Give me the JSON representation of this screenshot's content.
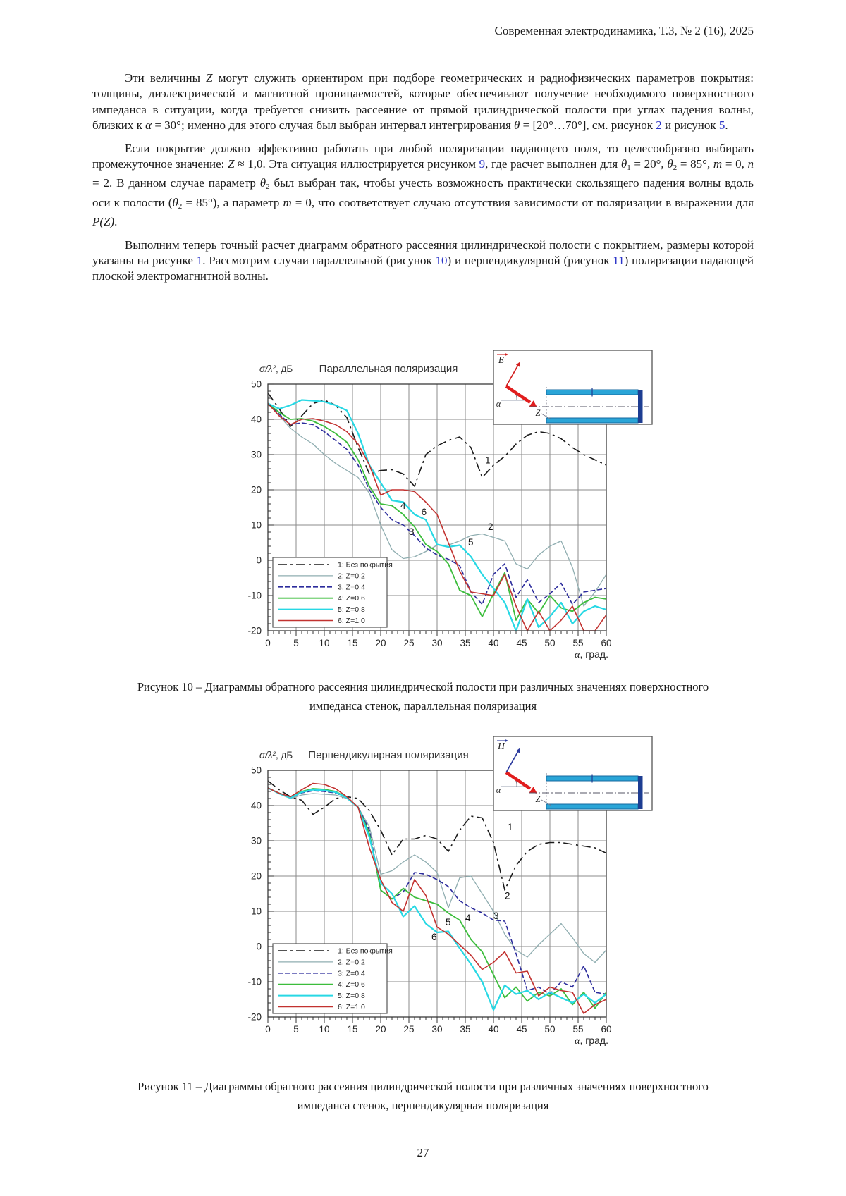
{
  "header": {
    "journal_line": "Современная электродинамика, Т.3, № 2 (16), 2025"
  },
  "page_number": "27",
  "paragraphs": [
    [
      {
        "t": "Эти величины "
      },
      {
        "t": "Z",
        "i": true
      },
      {
        "t": " могут служить ориентиром при подборе геометрических и радиофизических параметров покрытия: толщины, диэлектрической и магнитной проницаемостей, которые обеспечивают получение необходимого поверхностного импеданса в ситуации, когда требуется снизить рассеяние от прямой цилиндрической полости при углах падения волны, близких к "
      },
      {
        "t": "α",
        "i": true
      },
      {
        "t": " = 30°; именно для этого случая был выбран интервал интегрирования "
      },
      {
        "t": "θ",
        "i": true
      },
      {
        "t": " = [20°…70°], см. рисунок "
      },
      {
        "t": "2",
        "l": true
      },
      {
        "t": " и рисунок "
      },
      {
        "t": "5",
        "l": true
      },
      {
        "t": "."
      }
    ],
    [
      {
        "t": "Если покрытие должно эффективно работать при любой поляризации падающего поля, то целесообразно выбирать промежуточное значение: "
      },
      {
        "t": "Z",
        "i": true
      },
      {
        "t": " ≈ 1,0. Эта ситуация иллюстрируется рисунком "
      },
      {
        "t": "9",
        "l": true
      },
      {
        "t": ", где расчет выполнен для "
      },
      {
        "t": "θ",
        "i": true
      },
      {
        "t": "1",
        "sub": true
      },
      {
        "t": " = 20°, "
      },
      {
        "t": "θ",
        "i": true
      },
      {
        "t": "2",
        "sub": true
      },
      {
        "t": " = 85°, "
      },
      {
        "t": "m",
        "i": true
      },
      {
        "t": " = 0, "
      },
      {
        "t": "n",
        "i": true
      },
      {
        "t": " = 2. В данном случае параметр "
      },
      {
        "t": "θ",
        "i": true
      },
      {
        "t": "2",
        "sub": true
      },
      {
        "t": " был выбран так, чтобы учесть возможность практически скользящего падения волны вдоль оси к полости ("
      },
      {
        "t": "θ",
        "i": true
      },
      {
        "t": "2",
        "sub": true
      },
      {
        "t": " = 85°), а параметр "
      },
      {
        "t": "m",
        "i": true
      },
      {
        "t": " = 0, что соответствует случаю отсутствия зависимости от поляризации в выражении для "
      },
      {
        "t": "P(Z)",
        "i": true
      },
      {
        "t": "."
      }
    ],
    [
      {
        "t": "Выполним теперь точный расчет диаграмм обратного рассеяния цилиндрической полости с покрытием, размеры которой указаны на рисунке "
      },
      {
        "t": "1",
        "l": true
      },
      {
        "t": ". Рассмотрим случаи параллельной (рисунок "
      },
      {
        "t": "10",
        "l": true
      },
      {
        "t": ") и перпендикулярной (рисунок "
      },
      {
        "t": "11",
        "l": true
      },
      {
        "t": ") поляризации падающей плоской электромагнитной волны."
      }
    ]
  ],
  "captions": [
    {
      "line1": "Рисунок 10 – Диаграммы обратного рассеяния цилиндрической полости при различных значениях поверхностного",
      "line2": "импеданса стенок, параллельная поляризация"
    },
    {
      "line1": "Рисунок 11 – Диаграммы обратного рассеяния цилиндрической полости при различных значениях поверхностного",
      "line2": "импеданса стенок, перпендикулярная поляризация"
    }
  ],
  "chart_data": [
    {
      "type": "line",
      "title": "Параллельная поляризация",
      "ylabel": "σ/λ², дБ",
      "xlabel": "α, град.",
      "xlim": [
        0,
        60
      ],
      "ylim": [
        -20,
        50
      ],
      "x_tick_step": 5,
      "y_tick_step": 10,
      "x_minor": 1,
      "y_minor": 2,
      "x_step": 2,
      "grid": true,
      "legend_position": "bottom-left",
      "series": [
        {
          "name": "1: Без покрытия",
          "color": "#1a1a1a",
          "width": 1.6,
          "dash": "13 5 3 5",
          "values": [
            47.5,
            43,
            38,
            41,
            44.5,
            45.5,
            44,
            40.5,
            32,
            24.5,
            25.5,
            25.7,
            24.5,
            21,
            30,
            32.5,
            34,
            35,
            32,
            23.5,
            27,
            29.5,
            33,
            35.5,
            36.5,
            36,
            34.5,
            32,
            30,
            28.5,
            27
          ]
        },
        {
          "name": "2: Z=0.2",
          "color": "#8fadb0",
          "width": 1.3,
          "dash": "",
          "values": [
            44.5,
            41,
            37.5,
            35,
            33,
            30,
            27.5,
            25.5,
            23.5,
            19,
            10,
            3,
            0.5,
            1,
            2.5,
            4.3,
            4.3,
            5.5,
            7,
            7.5,
            6.5,
            5.5,
            -1,
            -2.5,
            1.5,
            4,
            5.5,
            -2,
            -13,
            -9,
            -4
          ]
        },
        {
          "name": "3: Z=0.4",
          "color": "#2c2c9c",
          "width": 1.6,
          "dash": "7 3",
          "values": [
            44.5,
            41.5,
            38.5,
            39,
            38.5,
            36.5,
            34,
            31.5,
            27,
            20,
            15,
            11.5,
            10,
            7,
            3.5,
            1.5,
            0.3,
            -1.5,
            -9,
            -12.5,
            -4,
            -1,
            -10.5,
            -5.5,
            -12,
            -9.5,
            -6.5,
            -12.5,
            -9,
            -8.5,
            -8
          ]
        },
        {
          "name": "4: Z=0.6",
          "color": "#3cbd3c",
          "width": 1.8,
          "dash": "",
          "values": [
            44.5,
            42,
            40,
            40.2,
            39.5,
            38,
            36,
            33.5,
            28.5,
            21,
            16,
            15.5,
            13,
            9.5,
            4.5,
            2.5,
            -1,
            -8.5,
            -10,
            -16,
            -9.5,
            -3.5,
            -17,
            -11,
            -15,
            -10,
            -13.5,
            -14.5,
            -12,
            -10.5,
            -11
          ]
        },
        {
          "name": "5: Z=0.8",
          "color": "#27d8e4",
          "width": 2.2,
          "dash": "",
          "values": [
            44.5,
            43,
            44,
            45.5,
            45.3,
            45,
            44,
            42.5,
            36,
            27,
            22,
            17,
            16.5,
            13,
            11.5,
            4.5,
            3.8,
            4.3,
            1,
            -4,
            -8,
            -12,
            -20,
            -11,
            -19,
            -16,
            -12,
            -18,
            -14.5,
            -13,
            -14
          ]
        },
        {
          "name": "6: Z=1.0",
          "color": "#c23230",
          "width": 1.6,
          "dash": "",
          "values": [
            44.5,
            41,
            38.5,
            40,
            40.2,
            39.5,
            38.5,
            36.5,
            33,
            27,
            18.5,
            20,
            20,
            19.5,
            16.5,
            13,
            5,
            -3,
            -9,
            -9.5,
            -10,
            -4,
            -13,
            -20,
            -14.5,
            -20,
            -17,
            -13,
            -20,
            -20,
            -15.5
          ]
        }
      ],
      "curve_labels": [
        {
          "t": "1",
          "x": 38.5,
          "y": 27.5
        },
        {
          "t": "2",
          "x": 39,
          "y": 8.6
        },
        {
          "t": "3",
          "x": 25,
          "y": 7.2
        },
        {
          "t": "4",
          "x": 23.5,
          "y": 14.6
        },
        {
          "t": "5",
          "x": 35.5,
          "y": 4.2
        },
        {
          "t": "6",
          "x": 27.2,
          "y": 12.8
        }
      ],
      "inset": {
        "vector_label": "E",
        "vector_color": "#d21f1f",
        "angle_label": "α",
        "z_label": "Z"
      }
    },
    {
      "type": "line",
      "title": "Перпендикулярная поляризация",
      "ylabel": "σ/λ², дБ",
      "xlabel": "α, град.",
      "xlim": [
        0,
        60
      ],
      "ylim": [
        -20,
        50
      ],
      "x_tick_step": 5,
      "y_tick_step": 10,
      "x_minor": 1,
      "y_minor": 2,
      "x_step": 2,
      "grid": true,
      "legend_position": "bottom-left",
      "series": [
        {
          "name": "1: Без покрытия",
          "color": "#1a1a1a",
          "width": 1.6,
          "dash": "13 5 3 5",
          "values": [
            47,
            44.5,
            42.5,
            41.5,
            37.5,
            39.5,
            42,
            42.5,
            42,
            38.5,
            33,
            26,
            30.5,
            30.5,
            31.5,
            30.5,
            27,
            33,
            37,
            36.5,
            29.5,
            16,
            23,
            27,
            29,
            29.5,
            29.5,
            29,
            28.5,
            28,
            26.5
          ]
        },
        {
          "name": "2: Z=0,2",
          "color": "#8fadb0",
          "width": 1.3,
          "dash": "",
          "values": [
            45,
            43.3,
            42,
            43,
            43.4,
            43.2,
            43,
            42,
            39.5,
            34,
            20.5,
            21.5,
            24,
            26,
            24,
            21,
            11,
            19.5,
            20,
            15,
            10,
            3.5,
            -1,
            -3,
            0.5,
            3.5,
            6.5,
            2.5,
            -2,
            -4.5,
            -1
          ]
        },
        {
          "name": "3: Z=0,4",
          "color": "#2c2c9c",
          "width": 1.6,
          "dash": "7 3",
          "values": [
            45,
            43.5,
            42.2,
            43.6,
            44.2,
            44,
            43.6,
            42.2,
            39.5,
            33,
            16,
            13.5,
            15.5,
            21,
            20.5,
            19,
            17,
            13,
            11,
            9.5,
            7.5,
            7.2,
            -2,
            -12.5,
            -11.5,
            -13.5,
            -10,
            -11.5,
            -5.5,
            -13,
            -13.5
          ]
        },
        {
          "name": "4: Z=0,6",
          "color": "#3cbd3c",
          "width": 1.8,
          "dash": "",
          "values": [
            45,
            43.5,
            42.3,
            44,
            44.8,
            44.6,
            44,
            42.3,
            39.5,
            32,
            16,
            13.5,
            16.5,
            14,
            13,
            12,
            9.5,
            7.5,
            2,
            -1.5,
            -8,
            -14.5,
            -11.5,
            -15.5,
            -13,
            -14,
            -12,
            -16.5,
            -13,
            -17.5,
            -13
          ]
        },
        {
          "name": "5: Z=0,8",
          "color": "#27d8e4",
          "width": 2.2,
          "dash": "",
          "values": [
            45,
            43.4,
            42.2,
            43.8,
            44.5,
            44.3,
            43.8,
            42.2,
            39.5,
            31,
            18,
            15,
            8.5,
            11.5,
            6.5,
            4,
            4.3,
            -0.5,
            -5,
            -10,
            -18,
            -11,
            -13.5,
            -12.5,
            -15,
            -13,
            -14.5,
            -16,
            -13.5,
            -16,
            -13.5
          ]
        },
        {
          "name": "6: Z=1,0",
          "color": "#c23230",
          "width": 1.6,
          "dash": "",
          "values": [
            45,
            43.5,
            42.5,
            44.5,
            46.3,
            46,
            44.8,
            42.5,
            39.5,
            28,
            19,
            12.5,
            10,
            19,
            14.5,
            5.5,
            3.5,
            0.5,
            -2.5,
            -6.5,
            -4.5,
            -1.5,
            -7.5,
            -7,
            -14,
            -11.5,
            -12.5,
            -13,
            -19,
            -16.5,
            -15
          ]
        }
      ],
      "curve_labels": [
        {
          "t": "1",
          "x": 42.5,
          "y": 33
        },
        {
          "t": "2",
          "x": 42,
          "y": 13.5
        },
        {
          "t": "3",
          "x": 40,
          "y": 7.8
        },
        {
          "t": "4",
          "x": 35,
          "y": 7.2
        },
        {
          "t": "5",
          "x": 31.5,
          "y": 6
        },
        {
          "t": "6",
          "x": 29,
          "y": 1.8
        }
      ],
      "inset": {
        "vector_label": "H",
        "vector_color": "#2b3a9e",
        "angle_label": "α",
        "z_label": "Z"
      }
    }
  ]
}
